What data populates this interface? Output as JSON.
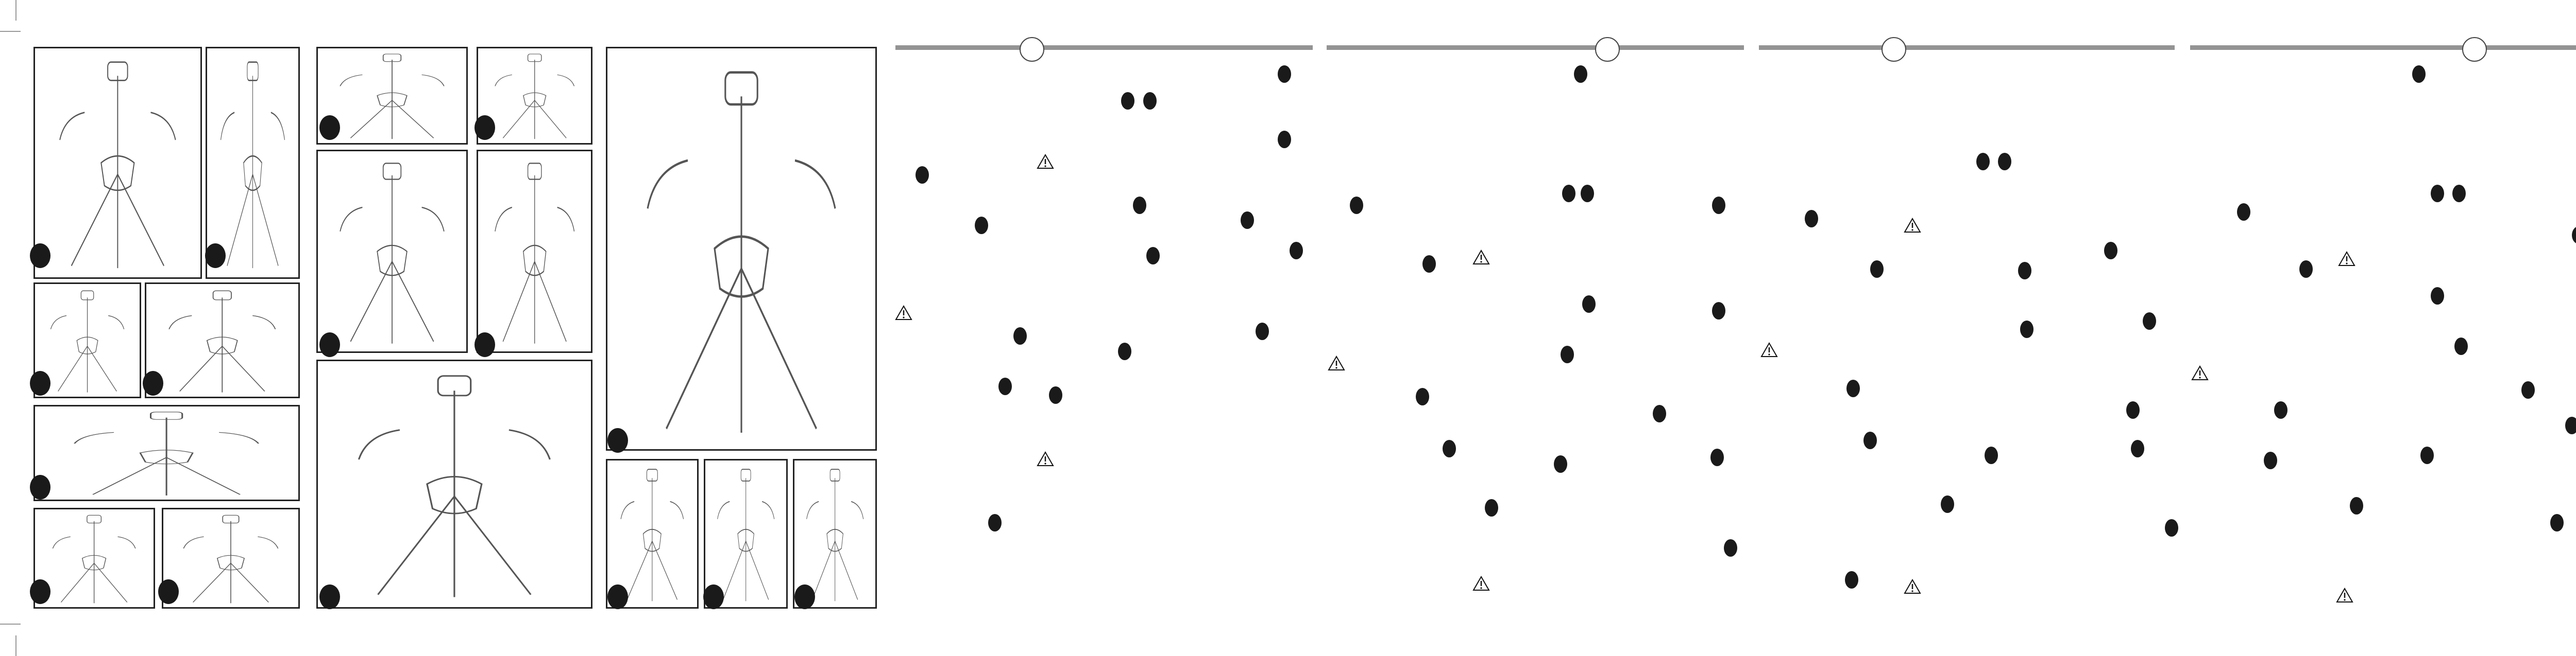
{
  "document": {
    "illustration_panel_count": 16,
    "text_column_count": 4,
    "step_marker_icon": "black-filled-circle",
    "warning_icon": "warning-triangle",
    "colors": {
      "header_bar": "#939393",
      "marker": "#1a1a1a",
      "panel_border": "#222222",
      "illustration_line": "#555555"
    }
  }
}
